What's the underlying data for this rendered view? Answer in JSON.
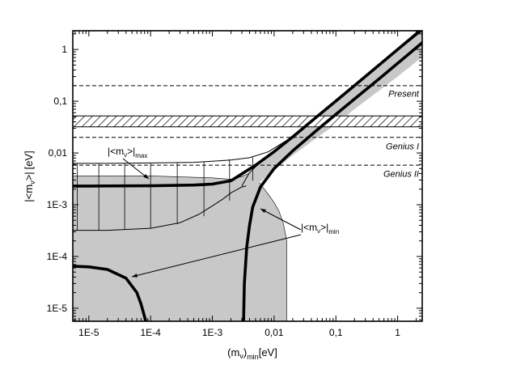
{
  "chart_data": {
    "type": "line",
    "xscale": "log",
    "yscale": "log",
    "xlim": [
      5.5e-06,
      2.5
    ],
    "ylim": [
      5.6e-06,
      2.3
    ],
    "grid": false,
    "xlabel": {
      "main": "(m",
      "sub_nu": "ν",
      "sub_min": "min",
      "unit": "[eV]"
    },
    "ylabel": {
      "open": "|<m",
      "sub_nu": "ν",
      "close": ">|",
      "unit": "[eV]"
    },
    "xticks": [
      {
        "value": 1e-05,
        "label": "1E-5"
      },
      {
        "value": 0.0001,
        "label": "1E-4"
      },
      {
        "value": 0.001,
        "label": "1E-3"
      },
      {
        "value": 0.01,
        "label": "0,01"
      },
      {
        "value": 0.1,
        "label": "0,1"
      },
      {
        "value": 1,
        "label": "1"
      }
    ],
    "yticks": [
      {
        "value": 1e-05,
        "label": "1E-5"
      },
      {
        "value": 0.0001,
        "label": "1E-4"
      },
      {
        "value": 0.001,
        "label": "1E-3"
      },
      {
        "value": 0.01,
        "label": "0,01"
      },
      {
        "value": 0.1,
        "label": "0,1"
      },
      {
        "value": 1,
        "label": "1"
      }
    ],
    "hlines": [
      {
        "name": "Present",
        "y": 0.2
      },
      {
        "name": "Genius I",
        "y": 0.02
      },
      {
        "name": "Genius II",
        "y": 0.0058
      }
    ],
    "hatched_band": {
      "y": [
        0.032,
        0.052
      ]
    },
    "labels": {
      "max": {
        "open": "|<m",
        "sub_nu": "ν",
        "close": ">|",
        "sub": "max"
      },
      "min": {
        "open": "|<m",
        "sub_nu": "ν",
        "close": ">|",
        "sub": "min"
      }
    },
    "series": [
      {
        "style": "thick",
        "x": [
          5.5e-06,
          1e-05,
          0.0001,
          0.0005,
          0.001,
          0.002,
          0.005,
          0.01,
          0.02,
          0.05,
          0.1,
          0.2,
          0.5,
          1,
          2.5
        ],
        "y": [
          0.0023,
          0.0023,
          0.00232,
          0.0024,
          0.0025,
          0.0029,
          0.0058,
          0.0106,
          0.0205,
          0.051,
          0.101,
          0.201,
          0.5,
          1,
          2.5
        ]
      },
      {
        "style": "thick",
        "x": [
          0.0032,
          0.0033,
          0.0036,
          0.004,
          0.0045,
          0.006,
          0.01,
          0.02,
          0.05,
          0.1,
          0.2,
          0.5,
          1,
          2.5
        ],
        "y": [
          5.6e-06,
          3e-05,
          0.00015,
          0.0004,
          0.0009,
          0.0022,
          0.005,
          0.011,
          0.028,
          0.056,
          0.11,
          0.27,
          0.54,
          1.35
        ]
      },
      {
        "style": "thick",
        "x": [
          5.5e-06,
          1e-05,
          2e-05,
          4e-05,
          6e-05,
          7e-05,
          8e-05,
          8.3e-05
        ],
        "y": [
          6.5e-05,
          6.3e-05,
          5.6e-05,
          3.8e-05,
          2e-05,
          1.2e-05,
          6.8e-06,
          5.6e-06
        ]
      },
      {
        "style": "thin",
        "x": [
          5.5e-06,
          2e-05,
          0.0001,
          0.0005,
          0.001,
          0.002,
          0.004,
          0.008,
          0.02,
          0.05,
          0.1,
          0.2,
          0.5,
          1,
          2.5
        ],
        "y": [
          0.0063,
          0.0063,
          0.0064,
          0.0066,
          0.0069,
          0.0073,
          0.0081,
          0.0105,
          0.0207,
          0.051,
          0.101,
          0.201,
          0.501,
          1,
          2.5
        ]
      },
      {
        "style": "thin",
        "x": [
          5.5e-06,
          2e-05,
          0.0001,
          0.0003,
          0.0006,
          0.001,
          0.0015,
          0.002,
          0.003,
          0.0035
        ],
        "y": [
          0.00032,
          0.00032,
          0.00035,
          0.00045,
          0.00065,
          0.00095,
          0.0013,
          0.0017,
          0.0022,
          0.0023
        ]
      },
      {
        "style": "thin",
        "x": [
          0.003,
          0.004,
          0.006,
          0.01,
          0.02,
          0.05,
          0.1,
          0.2,
          0.5,
          1,
          2.5
        ],
        "y": [
          0.0023,
          0.0042,
          0.0066,
          0.011,
          0.0215,
          0.052,
          0.102,
          0.2,
          0.49,
          0.96,
          2.3
        ]
      }
    ],
    "gray_region": {
      "x": [
        5.5e-06,
        0.0001,
        0.0005,
        0.001,
        0.002,
        0.003,
        0.0045,
        0.006,
        0.008,
        0.01,
        0.012,
        0.014,
        0.015,
        0.016,
        0.016,
        0.014,
        0.012,
        0.01,
        0.008,
        0.006,
        0.005,
        0.004,
        0.003,
        0.002,
        0.001,
        0.0001,
        5.5e-06
      ],
      "y": [
        5.6e-06,
        5.6e-06,
        5.6e-06,
        5.6e-06,
        5.6e-06,
        5.6e-06,
        5.6e-06,
        5.6e-06,
        5.6e-06,
        5.6e-06,
        5.6e-06,
        5.6e-06,
        5.6e-06,
        5.6e-06,
        0.0002,
        0.00045,
        0.00075,
        0.0011,
        0.0016,
        0.0025,
        0.0033,
        0.0041,
        0.0035,
        0.0031,
        0.0033,
        0.0036,
        0.0036
      ]
    },
    "gray_band_upper": {
      "x": [
        0.004,
        0.006,
        0.01,
        0.02,
        0.05,
        0.1,
        0.2,
        0.5,
        1,
        2.5,
        2.5,
        1,
        0.5,
        0.2,
        0.1,
        0.05,
        0.02,
        0.01,
        0.006,
        0.004
      ],
      "y": [
        0.0042,
        0.0066,
        0.011,
        0.0215,
        0.052,
        0.102,
        0.2,
        0.49,
        0.96,
        2.3,
        0.72,
        0.3,
        0.16,
        0.07,
        0.036,
        0.02,
        0.009,
        0.0047,
        0.0028,
        0.0018
      ]
    },
    "error_bars": {
      "x": [
        6.5e-06,
        1.45e-05,
        3.8e-05,
        0.0001,
        0.00027,
        0.00073,
        0.0019,
        0.0045
      ],
      "y_low": [
        0.00032,
        0.00032,
        0.00033,
        0.00035,
        0.00042,
        0.0006,
        0.0012,
        0.0029
      ],
      "y_high": [
        0.0063,
        0.0063,
        0.0064,
        0.0064,
        0.0065,
        0.0068,
        0.0076,
        0.0083
      ]
    }
  }
}
